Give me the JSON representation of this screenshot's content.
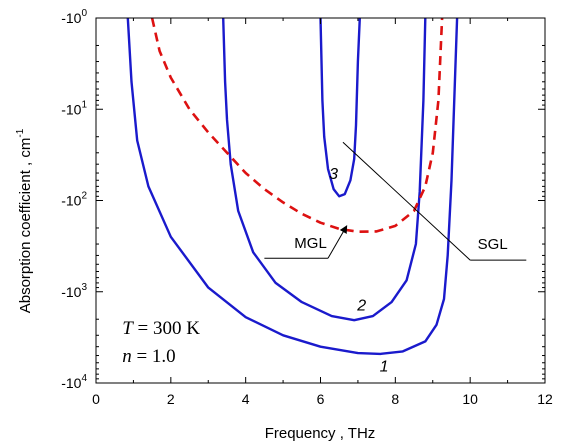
{
  "chart_data": {
    "type": "line",
    "xlabel": "Frequency , THz",
    "ylabel": "Absorption coefficient , cm",
    "ylabel_superscript": "-1",
    "xlim": [
      0,
      12
    ],
    "ylim": [
      -10000,
      -1
    ],
    "y_scale": "log (negative values, magnitude increasing downward)",
    "x_ticks": [
      "0",
      "2",
      "4",
      "6",
      "8",
      "10",
      "12"
    ],
    "y_ticks": [
      {
        "base": "-10",
        "exp": "0",
        "value": -1
      },
      {
        "base": "-10",
        "exp": "1",
        "value": -10
      },
      {
        "base": "-10",
        "exp": "2",
        "value": -100
      },
      {
        "base": "-10",
        "exp": "3",
        "value": -1000
      },
      {
        "base": "-10",
        "exp": "4",
        "value": -10000
      }
    ],
    "grid": false,
    "legend": "none",
    "colors": {
      "sgl": "#1a1acc",
      "mgl": "#dd1111"
    },
    "series": [
      {
        "name": "1",
        "style": "solid",
        "points": [
          [
            0.85,
            -1
          ],
          [
            0.95,
            -5
          ],
          [
            1.1,
            -22
          ],
          [
            1.4,
            -70
          ],
          [
            2.0,
            -250
          ],
          [
            3.0,
            -900
          ],
          [
            4.0,
            -1900
          ],
          [
            5.0,
            -3000
          ],
          [
            6.0,
            -4000
          ],
          [
            7.0,
            -4700
          ],
          [
            7.6,
            -4800
          ],
          [
            8.2,
            -4500
          ],
          [
            8.8,
            -3500
          ],
          [
            9.1,
            -2300
          ],
          [
            9.3,
            -1200
          ],
          [
            9.4,
            -400
          ],
          [
            9.5,
            -60
          ],
          [
            9.6,
            -4
          ],
          [
            9.65,
            -1
          ]
        ]
      },
      {
        "name": "2",
        "style": "solid",
        "points": [
          [
            3.4,
            -1
          ],
          [
            3.45,
            -5
          ],
          [
            3.5,
            -13
          ],
          [
            3.6,
            -40
          ],
          [
            3.8,
            -130
          ],
          [
            4.2,
            -370
          ],
          [
            4.8,
            -800
          ],
          [
            5.5,
            -1300
          ],
          [
            6.3,
            -1850
          ],
          [
            6.9,
            -2050
          ],
          [
            7.4,
            -1850
          ],
          [
            7.9,
            -1300
          ],
          [
            8.3,
            -750
          ],
          [
            8.55,
            -300
          ],
          [
            8.65,
            -80
          ],
          [
            8.75,
            -8
          ],
          [
            8.8,
            -1
          ]
        ]
      },
      {
        "name": "3",
        "style": "solid",
        "points": [
          [
            6.0,
            -1
          ],
          [
            6.05,
            -8
          ],
          [
            6.1,
            -20
          ],
          [
            6.2,
            -45
          ],
          [
            6.35,
            -75
          ],
          [
            6.5,
            -90
          ],
          [
            6.65,
            -85
          ],
          [
            6.8,
            -60
          ],
          [
            6.9,
            -35
          ],
          [
            6.95,
            -15
          ],
          [
            7.0,
            -3
          ],
          [
            7.05,
            -1
          ]
        ]
      },
      {
        "name": "MGL",
        "style": "dashed",
        "points": [
          [
            1.5,
            -1
          ],
          [
            1.7,
            -2.3
          ],
          [
            2.0,
            -4.5
          ],
          [
            2.5,
            -10
          ],
          [
            3.0,
            -18
          ],
          [
            3.5,
            -30
          ],
          [
            4.0,
            -50
          ],
          [
            4.5,
            -75
          ],
          [
            5.0,
            -105
          ],
          [
            5.5,
            -140
          ],
          [
            6.0,
            -175
          ],
          [
            6.5,
            -205
          ],
          [
            7.0,
            -220
          ],
          [
            7.5,
            -218
          ],
          [
            8.0,
            -190
          ],
          [
            8.5,
            -130
          ],
          [
            8.8,
            -70
          ],
          [
            9.0,
            -30
          ],
          [
            9.15,
            -8
          ],
          [
            9.25,
            -1
          ]
        ]
      }
    ],
    "curve_labels": [
      {
        "text": "1",
        "x": 7.7,
        "y": -7500
      },
      {
        "text": "2",
        "x": 7.1,
        "y": -1600
      },
      {
        "text": "3",
        "x": 6.35,
        "y": -58
      }
    ],
    "annotations": [
      {
        "text": "MGL",
        "text_pos": [
          5.3,
          -330
        ],
        "underline": [
          [
            4.5,
            -430
          ],
          [
            6.2,
            -430
          ]
        ],
        "arrow": [
          [
            6.2,
            -430
          ],
          [
            6.7,
            -190
          ]
        ]
      },
      {
        "text": "SGL",
        "text_pos": [
          10.2,
          -340
        ],
        "underline": [
          [
            10.0,
            -450
          ],
          [
            11.5,
            -450
          ]
        ],
        "leader": [
          [
            10.0,
            -450
          ],
          [
            6.6,
            -23
          ]
        ]
      }
    ],
    "text_annotations": [
      {
        "var": "T",
        "text": " = 300 K",
        "x": 0.7,
        "y": -2900
      },
      {
        "var": "n",
        "text": " = 1.0",
        "x": 0.7,
        "y": -5900
      }
    ]
  }
}
